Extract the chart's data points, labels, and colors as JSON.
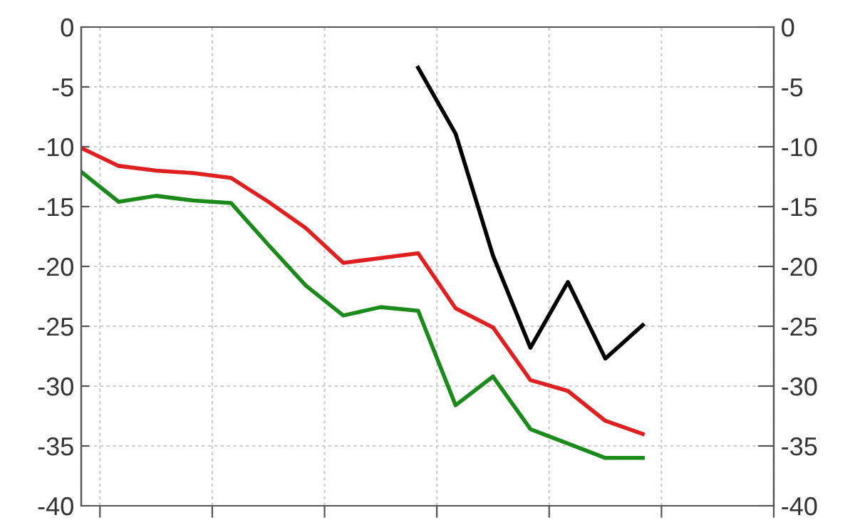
{
  "chart_data": {
    "type": "line",
    "categories": [
      null,
      null,
      null,
      null,
      null,
      null,
      null,
      null,
      null,
      null,
      null,
      null,
      null,
      null,
      null,
      null
    ],
    "series": [
      {
        "color": "#e02020",
        "values": [
          -10.1,
          -11.6,
          -12.0,
          -12.2,
          -12.6,
          -14.6,
          -16.8,
          -19.7,
          -19.3,
          -18.9,
          -23.5,
          -25.1,
          -29.5,
          -30.4,
          -32.9,
          -34.0
        ]
      },
      {
        "color": "#1a8a1a",
        "values": [
          -12.1,
          -14.6,
          -14.1,
          -14.5,
          -14.7,
          -18.2,
          -21.6,
          -24.1,
          -23.4,
          -23.7,
          -31.6,
          -29.2,
          -33.6,
          -34.8,
          -36.0,
          -36.0
        ]
      },
      {
        "color": "#000000",
        "values": [
          null,
          null,
          null,
          null,
          null,
          null,
          null,
          null,
          null,
          -3.4,
          -8.9,
          -19.1,
          -26.8,
          -21.3,
          -27.7,
          -24.9
        ]
      }
    ],
    "ylim": [
      -40,
      0
    ],
    "yticks": [
      -40,
      -35,
      -30,
      -25,
      -20,
      -15,
      -10,
      -5,
      0
    ],
    "y2lim": [
      -40,
      0
    ],
    "y2ticks": [
      -40,
      -35,
      -30,
      -25,
      -20,
      -15,
      -10,
      -5,
      0
    ],
    "grid": true,
    "marker": "none",
    "line_style": "solid"
  }
}
